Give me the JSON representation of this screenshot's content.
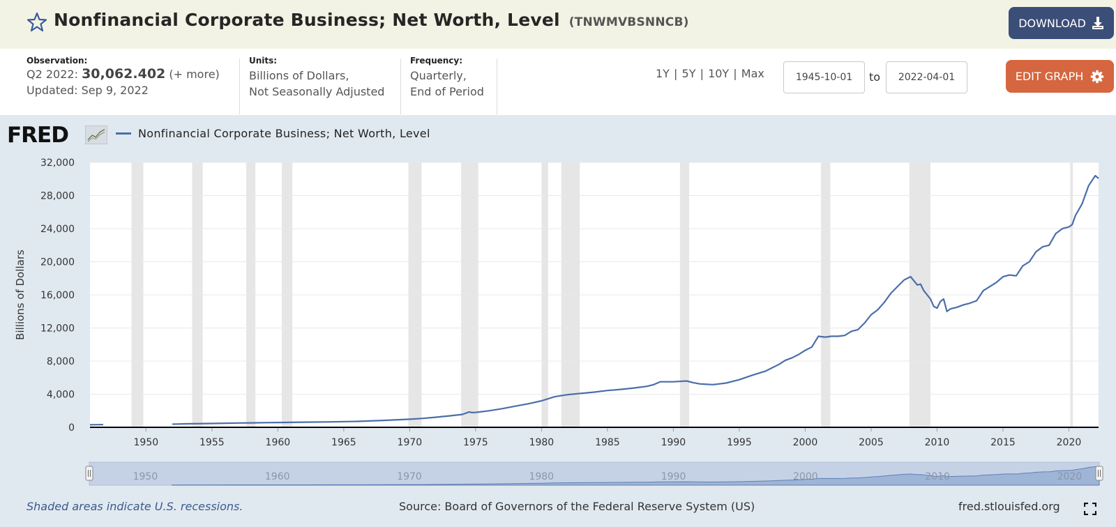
{
  "header": {
    "title": "Nonfinancial Corporate Business; Net Worth, Level",
    "series_id": "(TNWMVBSNNCB)",
    "download_label": "DOWNLOAD",
    "download_icon": "download-icon",
    "favorite_icon": "star-icon"
  },
  "info": {
    "observation_label": "Observation:",
    "observation_period": "Q2 2022:",
    "observation_value": "30,062.402",
    "observation_more": "(+ more)",
    "updated": "Updated: Sep 9, 2022",
    "units_label": "Units:",
    "units_line1": "Billions of Dollars,",
    "units_line2": "Not Seasonally Adjusted",
    "frequency_label": "Frequency:",
    "frequency_line1": "Quarterly,",
    "frequency_line2": "End of Period"
  },
  "controls": {
    "ranges": [
      "1Y",
      "5Y",
      "10Y",
      "Max"
    ],
    "range_separator": "|",
    "start_date": "1945-10-01",
    "to_label": "to",
    "end_date": "2022-04-01",
    "edit_label": "EDIT GRAPH",
    "edit_icon": "gear-icon"
  },
  "chart_data": {
    "type": "line",
    "title": "",
    "legend": [
      "Nonfinancial Corporate Business; Net Worth, Level"
    ],
    "legend_position": "top-left",
    "xlabel": "",
    "ylabel": "Billions of Dollars",
    "xlim": [
      1945.75,
      2022.25
    ],
    "ylim": [
      0,
      32000
    ],
    "y_ticks": [
      "0",
      "4,000",
      "8,000",
      "12,000",
      "16,000",
      "20,000",
      "24,000",
      "28,000",
      "32,000"
    ],
    "x_ticks": [
      "1950",
      "1955",
      "1960",
      "1965",
      "1970",
      "1975",
      "1980",
      "1985",
      "1990",
      "1995",
      "2000",
      "2005",
      "2010",
      "2015",
      "2020"
    ],
    "grid": true,
    "line_color": "#4a6ea8",
    "recession_color": "#e6e6e6",
    "recessions": [
      [
        1948.9,
        1949.8
      ],
      [
        1953.5,
        1954.3
      ],
      [
        1957.6,
        1958.3
      ],
      [
        1960.3,
        1961.1
      ],
      [
        1969.9,
        1970.9
      ],
      [
        1973.9,
        1975.2
      ],
      [
        1980.0,
        1980.5
      ],
      [
        1981.5,
        1982.9
      ],
      [
        1990.5,
        1991.2
      ],
      [
        2001.2,
        2001.9
      ],
      [
        2007.9,
        2009.5
      ],
      [
        2020.1,
        2020.3
      ]
    ],
    "series": [
      {
        "name": "Nonfinancial Corporate Business; Net Worth, Level",
        "segments": [
          {
            "x": [
              1945.75,
              1946.0,
              1946.5,
              1946.75
            ],
            "y": [
              300,
              310,
              320,
              330
            ]
          },
          {
            "x": [
              1952.0,
              1953.0,
              1955.0,
              1957.0,
              1958.0,
              1960.0,
              1962.0,
              1964.0,
              1966.0,
              1968.0,
              1970.0,
              1971.0,
              1972.0,
              1973.0,
              1974.0,
              1974.5,
              1974.75,
              1975.0,
              1976.0,
              1977.0,
              1978.0,
              1979.0,
              1980.0,
              1981.0,
              1982.0,
              1983.0,
              1984.0,
              1985.0,
              1986.0,
              1987.0,
              1988.0,
              1988.5,
              1989.0,
              1990.0,
              1991.0,
              1991.5,
              1992.0,
              1993.0,
              1994.0,
              1995.0,
              1996.0,
              1997.0,
              1997.5,
              1998.0,
              1998.5,
              1999.0,
              1999.5,
              2000.0,
              2000.5,
              2001.0,
              2001.5,
              2002.0,
              2002.5,
              2003.0,
              2003.5,
              2004.0,
              2004.5,
              2005.0,
              2005.5,
              2006.0,
              2006.5,
              2007.0,
              2007.5,
              2008.0,
              2008.5,
              2008.75,
              2009.0,
              2009.5,
              2009.75,
              2010.0,
              2010.25,
              2010.5,
              2010.75,
              2011.0,
              2011.5,
              2012.0,
              2012.5,
              2013.0,
              2013.5,
              2014.0,
              2014.5,
              2015.0,
              2015.5,
              2016.0,
              2016.5,
              2017.0,
              2017.5,
              2018.0,
              2018.5,
              2019.0,
              2019.5,
              2020.0,
              2020.25,
              2020.5,
              2021.0,
              2021.5,
              2022.0,
              2022.25
            ],
            "y": [
              380,
              420,
              460,
              520,
              540,
              580,
              620,
              660,
              720,
              830,
              980,
              1080,
              1220,
              1380,
              1560,
              1850,
              1780,
              1800,
              2000,
              2250,
              2550,
              2850,
              3200,
              3700,
              3950,
              4100,
              4250,
              4450,
              4580,
              4750,
              4950,
              5150,
              5500,
              5500,
              5600,
              5400,
              5250,
              5150,
              5350,
              5750,
              6300,
              6800,
              7200,
              7600,
              8100,
              8400,
              8800,
              9300,
              9700,
              11000,
              10900,
              11000,
              11000,
              11100,
              11600,
              11800,
              12600,
              13600,
              14200,
              15100,
              16200,
              17000,
              17800,
              18200,
              17200,
              17300,
              16500,
              15500,
              14600,
              14400,
              15200,
              15500,
              14000,
              14300,
              14500,
              14800,
              15000,
              15300,
              16500,
              17000,
              17500,
              18200,
              18400,
              18300,
              19500,
              20000,
              21200,
              21800,
              22000,
              23400,
              24000,
              24200,
              24500,
              25600,
              27000,
              29200,
              30400,
              30062
            ]
          }
        ]
      }
    ]
  },
  "navigator": {
    "x_ticks": [
      "1950",
      "1960",
      "1970",
      "1980",
      "1990",
      "2000",
      "2010",
      "2020"
    ]
  },
  "footer": {
    "recession_note": "Shaded areas indicate U.S. recessions.",
    "source": "Source: Board of Governors of the Federal Reserve System (US)",
    "url": "fred.stlouisfed.org",
    "fullscreen_icon": "fullscreen-icon"
  },
  "branding": {
    "logo_text": "FRED"
  }
}
